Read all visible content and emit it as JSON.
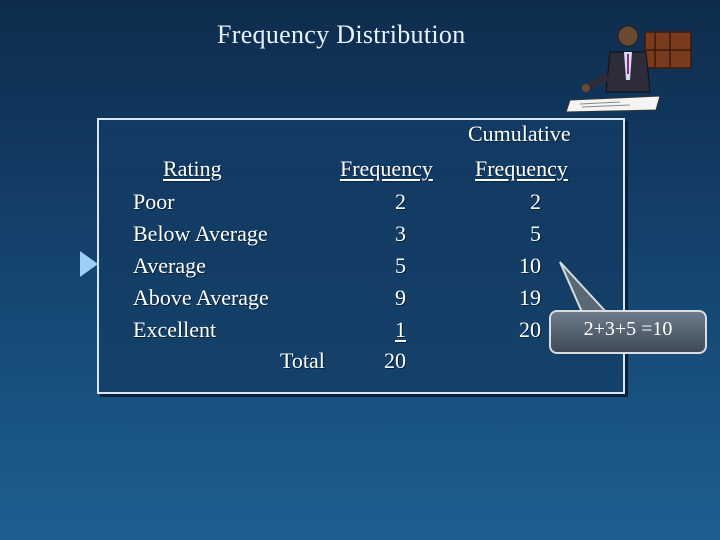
{
  "slide": {
    "title": "Frequency Distribution"
  },
  "table": {
    "header_top": "Cumulative",
    "col_rating": "Rating",
    "col_frequency": "Frequency",
    "col_cumulative": "Frequency",
    "rows": [
      {
        "label": "Poor",
        "frequency": "2",
        "cumulative": "2"
      },
      {
        "label": "Below Average",
        "frequency": "3",
        "cumulative": "5"
      },
      {
        "label": "Average",
        "frequency": "5",
        "cumulative": "10"
      },
      {
        "label": "Above Average",
        "frequency": "9",
        "cumulative": "19"
      },
      {
        "label": "Excellent",
        "frequency": "1",
        "cumulative": "20"
      }
    ],
    "total_label": "Total",
    "total_value": "20"
  },
  "callout": {
    "text": "2+3+5 =10"
  },
  "icons": {
    "pointer": "triangle-pointer-icon",
    "clipart": "businessman-at-desk-icon"
  },
  "colors": {
    "title": "#e9f2ff",
    "pointer": "#9ccff3",
    "callout_fill": "#4f5e6c"
  }
}
